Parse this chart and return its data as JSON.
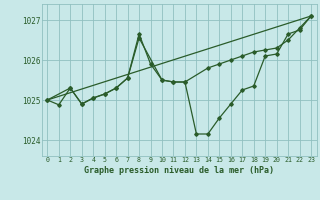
{
  "background_color": "#c8e8e8",
  "grid_color": "#90c0c0",
  "line_color": "#2a5c2a",
  "title": "Graphe pression niveau de la mer (hPa)",
  "xlim": [
    -0.5,
    23.5
  ],
  "ylim": [
    1023.6,
    1027.4
  ],
  "yticks": [
    1024,
    1025,
    1026,
    1027
  ],
  "xticks": [
    0,
    1,
    2,
    3,
    4,
    5,
    6,
    7,
    8,
    9,
    10,
    11,
    12,
    13,
    14,
    15,
    16,
    17,
    18,
    19,
    20,
    21,
    22,
    23
  ],
  "series1_x": [
    0,
    1,
    2,
    3,
    4,
    5,
    6,
    7,
    8,
    9,
    10,
    11,
    12,
    13,
    14,
    15,
    16,
    17,
    18,
    19,
    20,
    21,
    22,
    23
  ],
  "series1_y": [
    1025.0,
    1024.88,
    1025.3,
    1024.9,
    1025.05,
    1025.15,
    1025.3,
    1025.55,
    1026.65,
    1025.9,
    1025.5,
    1025.45,
    1025.45,
    1024.15,
    1024.15,
    1024.55,
    1024.9,
    1025.25,
    1025.35,
    1026.1,
    1026.15,
    1026.65,
    1026.75,
    1027.1
  ],
  "series2_x": [
    0,
    2,
    3,
    4,
    5,
    6,
    7,
    8,
    10,
    11,
    12,
    14,
    15,
    16,
    17,
    18,
    19,
    20,
    21,
    22,
    23
  ],
  "series2_y": [
    1025.0,
    1025.3,
    1024.9,
    1025.05,
    1025.15,
    1025.3,
    1025.55,
    1026.55,
    1025.5,
    1025.45,
    1025.45,
    1025.8,
    1025.9,
    1026.0,
    1026.1,
    1026.2,
    1026.25,
    1026.3,
    1026.5,
    1026.8,
    1027.1
  ],
  "series3_x": [
    0,
    23
  ],
  "series3_y": [
    1025.0,
    1027.1
  ]
}
